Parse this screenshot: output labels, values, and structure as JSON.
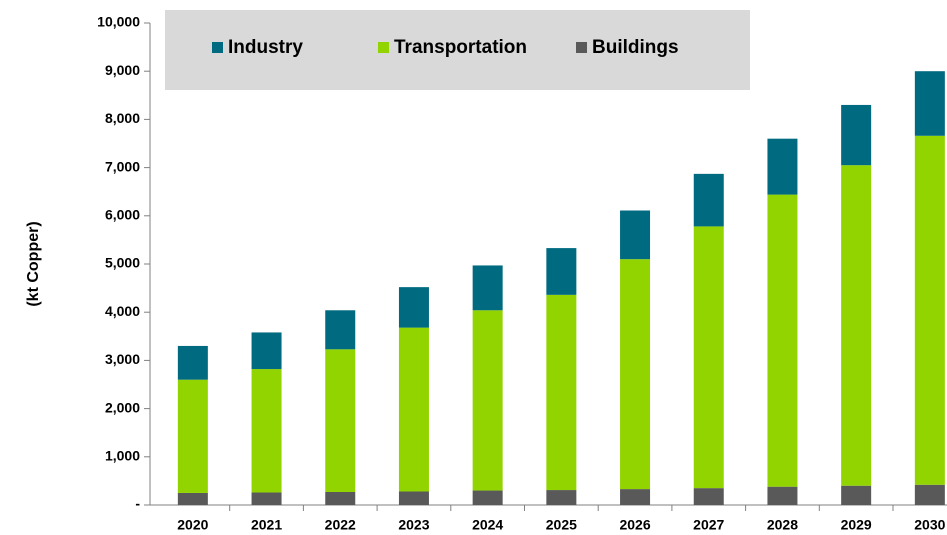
{
  "chart_data": {
    "type": "stacked_bar",
    "y_label": "(kt Copper)",
    "categories": [
      "2020",
      "2021",
      "2022",
      "2023",
      "2024",
      "2025",
      "2026",
      "2027",
      "2028",
      "2029",
      "2030"
    ],
    "series": [
      {
        "name": "Buildings",
        "color": "#595959",
        "values": [
          250,
          260,
          270,
          280,
          300,
          310,
          330,
          350,
          380,
          400,
          420
        ]
      },
      {
        "name": "Transportation",
        "color": "#92d400",
        "values": [
          2350,
          2560,
          2960,
          3400,
          3740,
          4050,
          4770,
          5430,
          6060,
          6650,
          7240
        ]
      },
      {
        "name": "Industry",
        "color": "#006a80",
        "values": [
          700,
          760,
          810,
          840,
          930,
          970,
          1010,
          1090,
          1160,
          1250,
          1340
        ]
      }
    ],
    "ylim": [
      0,
      10000
    ],
    "yticks": [
      {
        "value": 0,
        "label": "-"
      },
      {
        "value": 1000,
        "label": "1,000"
      },
      {
        "value": 2000,
        "label": "2,000"
      },
      {
        "value": 3000,
        "label": "3,000"
      },
      {
        "value": 4000,
        "label": "4,000"
      },
      {
        "value": 5000,
        "label": "5,000"
      },
      {
        "value": 6000,
        "label": "6,000"
      },
      {
        "value": 7000,
        "label": "7,000"
      },
      {
        "value": 8000,
        "label": "8,000"
      },
      {
        "value": 9000,
        "label": "9,000"
      },
      {
        "value": 10000,
        "label": "10,000"
      }
    ],
    "legend": "top"
  }
}
